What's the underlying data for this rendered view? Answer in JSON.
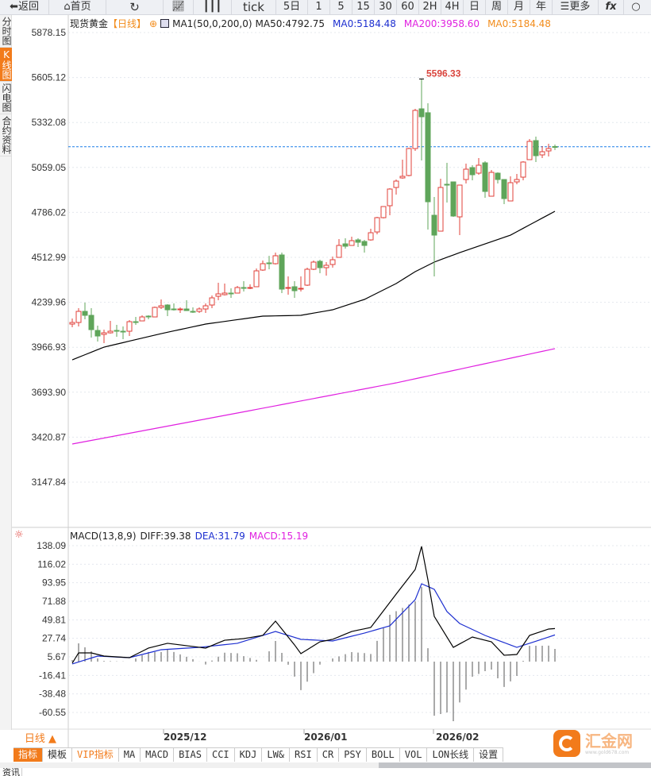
{
  "toolbar": {
    "back": "返回",
    "home": "首页",
    "tick": "tick",
    "periods": [
      "5日",
      "1",
      "5",
      "15",
      "30",
      "60",
      "2H",
      "4H",
      "日",
      "周",
      "月",
      "年"
    ],
    "more": "更多",
    "fx": "fx"
  },
  "sidebar": [
    "分时图",
    "K线图",
    "闪电图",
    "合约资料"
  ],
  "legend": {
    "symbol": "现货黄金",
    "period": "【日线】",
    "ma_name": "MA1(50,0,200,0)",
    "ma50": "MA50:4792.75",
    "ma0a": "MA0:5184.48",
    "ma200": "MA200:3958.60",
    "ma0b": "MA0:5184.48"
  },
  "colors": {
    "up": "#e0403a",
    "down": "#5fa55a",
    "ma50": "#000000",
    "ma0": "#1d2fd0",
    "ma200": "#e020e0",
    "ma0b": "#f28c1b",
    "accent": "#f27b1b",
    "lastline": "#1a7fe8"
  },
  "price_axis": [
    "5878.15",
    "5605.12",
    "5332.08",
    "5059.05",
    "4786.02",
    "4512.99",
    "4239.96",
    "3966.93",
    "3693.90",
    "3420.87",
    "3147.84"
  ],
  "high_label": "5596.33",
  "last_price": 5184.48,
  "chart_data": [
    {
      "type": "candlestick",
      "ylim": [
        3147.84,
        5878.15
      ],
      "ohlc": [
        [
          4107.7,
          4141.5,
          4088.4,
          4117.4
        ],
        [
          4117.4,
          4204.2,
          4093.2,
          4184.9
        ],
        [
          4184.9,
          4238,
          4136.7,
          4160.8
        ],
        [
          4160.8,
          4204.2,
          4025.7,
          4073.9
        ],
        [
          4069.1,
          4098,
          4001.6,
          4035.3
        ],
        [
          4045,
          4073.9,
          3991.9,
          4054.6
        ],
        [
          4054.6,
          4127,
          4049.8,
          4064.3
        ],
        [
          4069.1,
          4102.9,
          4030.5,
          4064.3
        ],
        [
          4064.3,
          4093.2,
          4016,
          4059.5
        ],
        [
          4064.3,
          4131.8,
          4035.3,
          4122.2
        ],
        [
          4122.2,
          4151.1,
          4102.9,
          4119.8
        ],
        [
          4127,
          4160.8,
          4127,
          4151.1
        ],
        [
          4156,
          4160.8,
          4136.7,
          4151.1
        ],
        [
          4151.1,
          4213.8,
          4151.1,
          4209
        ],
        [
          4209,
          4257.3,
          4199.4,
          4218.7
        ],
        [
          4223.5,
          4228.4,
          4156,
          4194.5
        ],
        [
          4199.4,
          4233.2,
          4189.7,
          4194.5
        ],
        [
          4194.5,
          4209,
          4175.2,
          4199.4
        ],
        [
          4199.4,
          4252.5,
          4189.7,
          4189.7
        ],
        [
          4184.9,
          4209,
          4175.2,
          4183.5
        ],
        [
          4184.9,
          4209,
          4175.2,
          4199.4
        ],
        [
          4199.4,
          4233.2,
          4175.2,
          4218.7
        ],
        [
          4223.5,
          4281.4,
          4204.2,
          4266.9
        ],
        [
          4276.6,
          4358.6,
          4252.5,
          4291.1
        ],
        [
          4286.2,
          4353.8,
          4281.4,
          4295.9
        ],
        [
          4295.9,
          4324.8,
          4266.9,
          4293.5
        ],
        [
          4295.9,
          4339.3,
          4295.9,
          4329.7
        ],
        [
          4329.7,
          4368.2,
          4305.5,
          4324.8
        ],
        [
          4324.8,
          4348.9,
          4320,
          4329.7
        ],
        [
          4334.5,
          4445.5,
          4334.5,
          4431
        ],
        [
          4435.8,
          4493.7,
          4431,
          4474.4
        ],
        [
          4479.3,
          4522.2,
          4440.6,
          4474.4
        ],
        [
          4474.4,
          4541.9,
          4469.6,
          4522.7
        ],
        [
          4527.5,
          4541.9,
          4295.9,
          4320
        ],
        [
          4327,
          4397.2,
          4286.2,
          4329.7
        ],
        [
          4334.5,
          4368.2,
          4266.9,
          4310.3
        ],
        [
          4320,
          4397.2,
          4305.5,
          4324.8
        ],
        [
          4344.1,
          4450.3,
          4339.3,
          4440.6
        ],
        [
          4440.6,
          4493.7,
          4435.8,
          4484.1
        ],
        [
          4488.9,
          4498.5,
          4416.5,
          4450.3
        ],
        [
          4450.3,
          4484.1,
          4401.9,
          4464.8
        ],
        [
          4469.6,
          4517.8,
          4450.3,
          4498.5
        ],
        [
          4512.9,
          4623.9,
          4512.9,
          4585.3
        ],
        [
          4595,
          4628.7,
          4566,
          4580.5
        ],
        [
          4585.3,
          4638.4,
          4585.3,
          4614.2
        ],
        [
          4619,
          4628.7,
          4575.7,
          4604.6
        ],
        [
          4609.4,
          4619,
          4541.9,
          4585.3
        ],
        [
          4619,
          4686.5,
          4614.2,
          4662.4
        ],
        [
          4667.2,
          4758.9,
          4652.8,
          4754
        ],
        [
          4754,
          4821.6,
          4749.2,
          4821.6
        ],
        [
          4826.5,
          4932.6,
          4768.6,
          4927.8
        ],
        [
          4937.4,
          4985.7,
          4894,
          4976
        ],
        [
          4995.3,
          5106.3,
          4990.5,
          5005
        ],
        [
          5010,
          5178.6,
          5005,
          5173.8
        ],
        [
          5173.8,
          5415,
          5159.3,
          5405.4
        ],
        [
          5415,
          5596.33,
          5101.5,
          5366.8
        ],
        [
          5391.2,
          5449,
          4681.8,
          4850.6
        ],
        [
          4768.6,
          4879.5,
          4397.1,
          4648
        ],
        [
          4672.1,
          4990.5,
          4672.1,
          4937.4
        ],
        [
          4956.7,
          5087,
          4845.8,
          4954.3
        ],
        [
          4971.2,
          4971.2,
          4758.9,
          4763.8
        ],
        [
          4758.9,
          4951.9,
          4648,
          4951.9
        ],
        [
          4985.7,
          5082.2,
          4961.5,
          5048.4
        ],
        [
          5058.1,
          5072.6,
          4980.9,
          5014.7
        ],
        [
          5024.3,
          5116,
          5014.7,
          5072.6
        ],
        [
          5087,
          5096.7,
          4874.7,
          4913.3
        ],
        [
          4884.3,
          5043.7,
          4884.3,
          5029.2
        ],
        [
          5024.3,
          5029.2,
          4961.5,
          4985.7
        ],
        [
          4985.7,
          4985.7,
          4836.2,
          4869.9
        ],
        [
          4855.5,
          5005,
          4855.5,
          4966.4
        ],
        [
          4971.2,
          5019.5,
          4956.7,
          4985.7
        ],
        [
          5000.1,
          5096.7,
          4980.9,
          5091.8
        ],
        [
          5106.3,
          5231.8,
          5106.3,
          5217.3
        ],
        [
          5222.1,
          5246.3,
          5091.8,
          5130.4
        ],
        [
          5135.2,
          5188.3,
          5116,
          5154.5
        ],
        [
          5159.3,
          5202.7,
          5125.6,
          5173.8
        ],
        [
          5186,
          5198,
          5165,
          5184.48
        ]
      ],
      "ma50": [
        [
          0,
          3890.6
        ],
        [
          5,
          3967.8
        ],
        [
          14,
          4049.8
        ],
        [
          21,
          4107.7
        ],
        [
          30,
          4156
        ],
        [
          36,
          4160.8
        ],
        [
          41,
          4194.5
        ],
        [
          46,
          4257.3
        ],
        [
          51,
          4353.8
        ],
        [
          54,
          4426.2
        ],
        [
          57,
          4484.1
        ],
        [
          61,
          4541.9
        ],
        [
          69,
          4648
        ],
        [
          76,
          4792.75
        ]
      ],
      "ma200": [
        [
          0,
          3379.3
        ],
        [
          26,
          3567.4
        ],
        [
          51,
          3750.7
        ],
        [
          76,
          3958.6
        ]
      ],
      "x_ticks": [
        "2025/12",
        "2026/01",
        "2026/02"
      ]
    },
    {
      "type": "macd",
      "ylim": [
        -60.55,
        138.09
      ],
      "title": "MACD(13,8,9)",
      "diff_label": "DIFF:39.38",
      "dea_label": "DEA:31.79",
      "macd_label": "MACD:15.19",
      "axis": [
        "138.09",
        "116.02",
        "93.95",
        "71.88",
        "49.81",
        "27.74",
        "5.67",
        "-16.41",
        "-38.48",
        "-60.55"
      ],
      "diff": [
        [
          0,
          -1.9
        ],
        [
          1,
          10.4
        ],
        [
          3,
          10.4
        ],
        [
          5,
          6.6
        ],
        [
          9,
          4.7
        ],
        [
          12,
          16.1
        ],
        [
          15,
          21.8
        ],
        [
          19,
          18
        ],
        [
          21,
          16.1
        ],
        [
          24,
          25.5
        ],
        [
          27,
          27.4
        ],
        [
          30,
          31.2
        ],
        [
          32,
          48.2
        ],
        [
          35,
          19.9
        ],
        [
          36,
          9.5
        ],
        [
          39,
          23.6
        ],
        [
          41,
          26.5
        ],
        [
          44,
          35.9
        ],
        [
          47,
          40.7
        ],
        [
          51,
          80.4
        ],
        [
          54,
          109.7
        ],
        [
          55,
          137.2
        ],
        [
          56,
          97.4
        ],
        [
          57,
          53.9
        ],
        [
          60,
          17
        ],
        [
          63,
          29.3
        ],
        [
          66,
          23.6
        ],
        [
          68,
          7.6
        ],
        [
          70,
          8.5
        ],
        [
          72,
          31.2
        ],
        [
          75,
          38.8
        ],
        [
          76,
          39.38
        ]
      ],
      "dea": [
        [
          0,
          -2.8
        ],
        [
          4,
          6.6
        ],
        [
          9,
          4.7
        ],
        [
          14,
          14.2
        ],
        [
          20,
          17
        ],
        [
          26,
          21.8
        ],
        [
          32,
          35.9
        ],
        [
          36,
          26.5
        ],
        [
          41,
          24.6
        ],
        [
          46,
          34
        ],
        [
          50,
          42.6
        ],
        [
          54,
          73.8
        ],
        [
          55,
          92.7
        ],
        [
          57,
          86.1
        ],
        [
          59,
          59.6
        ],
        [
          61,
          45.4
        ],
        [
          65,
          31.2
        ],
        [
          70,
          17
        ],
        [
          72,
          21.8
        ],
        [
          76,
          31.79
        ]
      ]
    }
  ],
  "bottom": {
    "period": "日线 ▲",
    "dates": [
      "2025/12",
      "2026/01",
      "2026/02"
    ],
    "tabs": [
      "指标",
      "模板",
      "VIP指标",
      "MA",
      "MACD",
      "BIAS",
      "CCI",
      "KDJ",
      "LW&",
      "RSI",
      "CR",
      "PSY",
      "BOLL",
      "VOL",
      "LON长线",
      "设置"
    ],
    "logo": "汇金网",
    "logo_sub": "www.gold678.com",
    "news": "资讯"
  }
}
